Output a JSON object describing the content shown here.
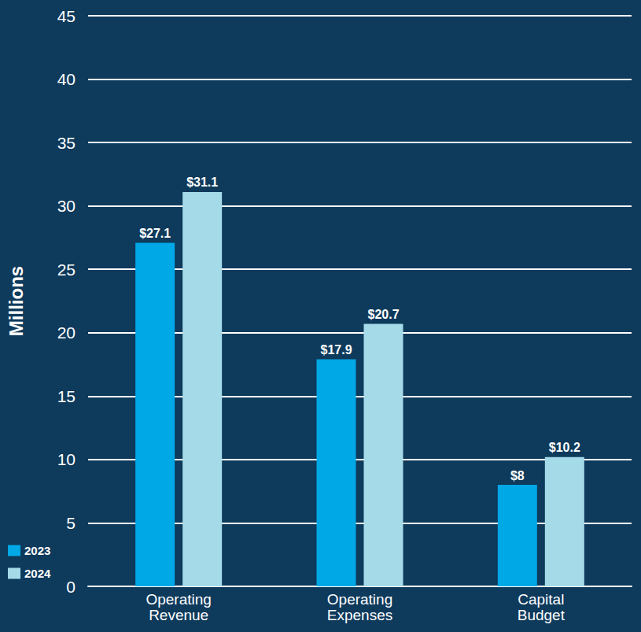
{
  "chart_data": {
    "type": "bar",
    "y_label": "Millions",
    "categories": [
      "Operating Revenue",
      "Operating Expenses",
      "Capital Budget"
    ],
    "series": [
      {
        "name": "2023",
        "color": "#00a8e6",
        "values": [
          27.1,
          17.9,
          8
        ],
        "value_labels": [
          "$27.1",
          "$17.9",
          "$8"
        ]
      },
      {
        "name": "2024",
        "color": "#a5dbe9",
        "values": [
          31.1,
          20.7,
          10.2
        ],
        "value_labels": [
          "$31.1",
          "$20.7",
          "$10.2"
        ]
      }
    ],
    "ylim": [
      0,
      45
    ],
    "yticks": [
      0,
      5,
      10,
      15,
      20,
      25,
      30,
      35,
      40,
      45
    ],
    "grid": true,
    "legend": "bottom-left",
    "data_labels": true
  }
}
